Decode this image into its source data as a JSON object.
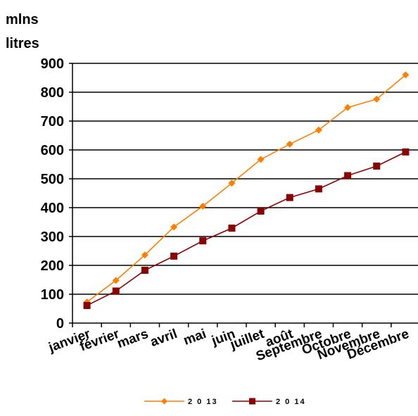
{
  "chart_data": {
    "type": "line",
    "ylabel_lines": [
      "mlns",
      "litres"
    ],
    "xlabel": "",
    "categories": [
      "janvier",
      "février",
      "mars",
      "avril",
      "mai",
      "juin",
      "juillet",
      "août",
      "Septembre",
      "Octobre",
      "Novembre",
      "Décembre"
    ],
    "ylim": [
      0,
      900
    ],
    "yticks": [
      "0",
      "100",
      "200",
      "300",
      "400",
      "500",
      "600",
      "700",
      "800",
      "900"
    ],
    "grid": true,
    "legend_position": "bottom",
    "series": [
      {
        "name": "2 0 13",
        "color": "#ff7f00",
        "marker": "diamond",
        "values": [
          73,
          148,
          236,
          333,
          405,
          485,
          567,
          620,
          669,
          747,
          776,
          860
        ]
      },
      {
        "name": "2 0 14",
        "color": "#8b0000",
        "marker": "square",
        "values": [
          61,
          111,
          183,
          232,
          285,
          329,
          388,
          435,
          465,
          511,
          544,
          593
        ]
      }
    ]
  }
}
